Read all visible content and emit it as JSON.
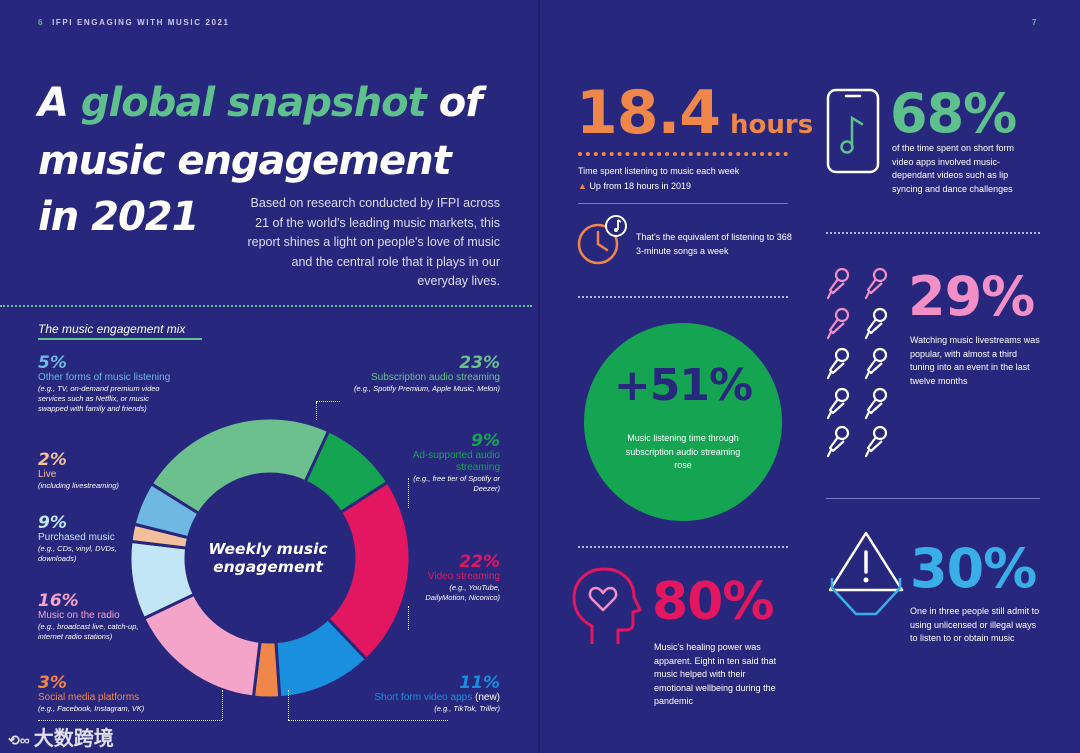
{
  "colors": {
    "background": "#28277e",
    "green": "#5ec08c",
    "orange": "#f0874a",
    "pink": "#f28fc6",
    "magenta": "#e3175f",
    "blue": "#3aaee6",
    "light_blue": "#6fb8e3",
    "peach": "#f4bf9c"
  },
  "header": {
    "left_page_number": "6",
    "left_title": "IFPI ENGAGING WITH MUSIC 2021",
    "right_page_number": "7"
  },
  "title": {
    "line1_a": "A ",
    "line1_b": "global snapshot",
    "line1_c": " of",
    "line2": "music engagement",
    "line3": "in 2021"
  },
  "intro": "Based on research conducted by IFPI across 21 of the world's leading music markets, this report shines a light on people's love of music and the central role that it plays in our everyday lives.",
  "mix": {
    "title": "The music engagement mix",
    "center_line1": "Weekly music",
    "center_line2": "engagement",
    "segments": [
      {
        "pct": "5%",
        "label": "Other forms of music listening",
        "example": "(e.g., TV, on-demand premium video services such as Netflix, or music swapped with family and friends)",
        "color": "#6fb8e3"
      },
      {
        "pct": "2%",
        "label": "Live",
        "example": "(including livestreaming)",
        "color": "#f4bf9c"
      },
      {
        "pct": "9%",
        "label": "Purchased music",
        "example": "(e.g., CDs, vinyl, DVDs, downloads)",
        "color": "#c3e6f6"
      },
      {
        "pct": "16%",
        "label": "Music on the radio",
        "example": "(e.g., broadcast live, catch-up, internet radio stations)",
        "color": "#f4a3c9"
      },
      {
        "pct": "3%",
        "label": "Social media platforms",
        "example": "(e.g., Facebook, Instagram, VK)",
        "color": "#f0874a"
      },
      {
        "pct": "23%",
        "label": "Subscription audio streaming",
        "example": "(e.g., Spotify Premium, Apple Music, Melon)",
        "color": "#6cc08e"
      },
      {
        "pct": "9%",
        "label": "Ad-supported audio streaming",
        "example": "(e.g., free tier of Spotify or Deezer)",
        "color": "#15a552"
      },
      {
        "pct": "22%",
        "label": "Video streaming",
        "example": "(e.g., YouTube, DailyMotion, Niconico)",
        "color": "#e3175f"
      },
      {
        "pct": "11%",
        "label": "Short form video apps",
        "label_suffix": "(new)",
        "example": "(e.g., TikTok, Triller)",
        "color": "#1a8fdd"
      }
    ]
  },
  "stats": {
    "hours": {
      "value": "18.4",
      "unit": "hours",
      "desc": "Time spent listening to music each week",
      "change": "Up from 18 hours in 2019"
    },
    "songs": {
      "desc": "That's the equivalent of listening to 368 3-minute songs a week"
    },
    "subscription": {
      "value": "+51%",
      "desc": "Music listening time through subscription audio streaming rose"
    },
    "healing": {
      "value": "80%",
      "desc": "Music's healing power was apparent. Eight in ten said that music helped with their emotional wellbeing during the pandemic"
    },
    "short_form": {
      "value": "68%",
      "desc": "of the time spent on short form video apps involved music-dependant videos such as lip syncing and dance challenges"
    },
    "livestream": {
      "value": "29%",
      "desc": "Watching music livestreams was popular, with almost a third tuning into an event in the last twelve months"
    },
    "unlicensed": {
      "value": "30%",
      "desc": "One in three people still admit to using unlicensed or illegal ways to listen to or obtain music"
    }
  },
  "watermark": "大数跨境"
}
